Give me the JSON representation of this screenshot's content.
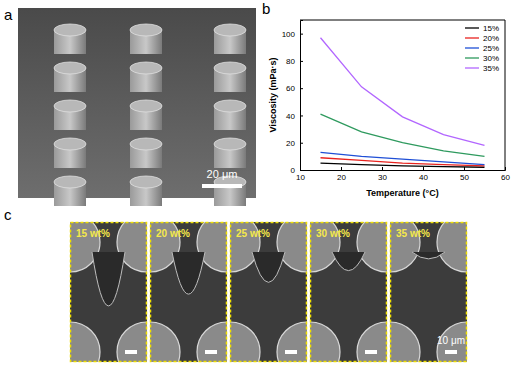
{
  "chart_data": {
    "type": "line",
    "x_label": "Temperature (°C)",
    "y_label": "Viscosity (mPa·s)",
    "x": [
      15,
      25,
      35,
      45,
      55
    ],
    "series": [
      {
        "name": "15%",
        "color": "#000000",
        "values": [
          5,
          4,
          3,
          2.5,
          2
        ]
      },
      {
        "name": "20%",
        "color": "#e8231f",
        "values": [
          9,
          7,
          5,
          4,
          3
        ]
      },
      {
        "name": "25%",
        "color": "#1f4fd6",
        "values": [
          13,
          10,
          8,
          6,
          4
        ]
      },
      {
        "name": "30%",
        "color": "#2e9a5e",
        "values": [
          41,
          28,
          20,
          14,
          10
        ]
      },
      {
        "name": "35%",
        "color": "#b266ff",
        "values": [
          97,
          61,
          39,
          26,
          18
        ]
      }
    ],
    "xlim": [
      10,
      60
    ],
    "xticks": [
      10,
      20,
      30,
      40,
      50,
      60
    ],
    "ylim": [
      0,
      110
    ],
    "yticks": [
      0,
      20,
      40,
      60,
      80,
      100
    ],
    "legend": "top-right",
    "grid": false
  },
  "panels": {
    "a": {
      "label": "a",
      "scale_bar": "20 μm"
    },
    "b": {
      "label": "b"
    },
    "c": {
      "label": "c",
      "images": [
        "15 wt%",
        "20 wt%",
        "25 wt%",
        "30 wt%",
        "35 wt%"
      ],
      "scale_bar": "10 μm"
    }
  }
}
